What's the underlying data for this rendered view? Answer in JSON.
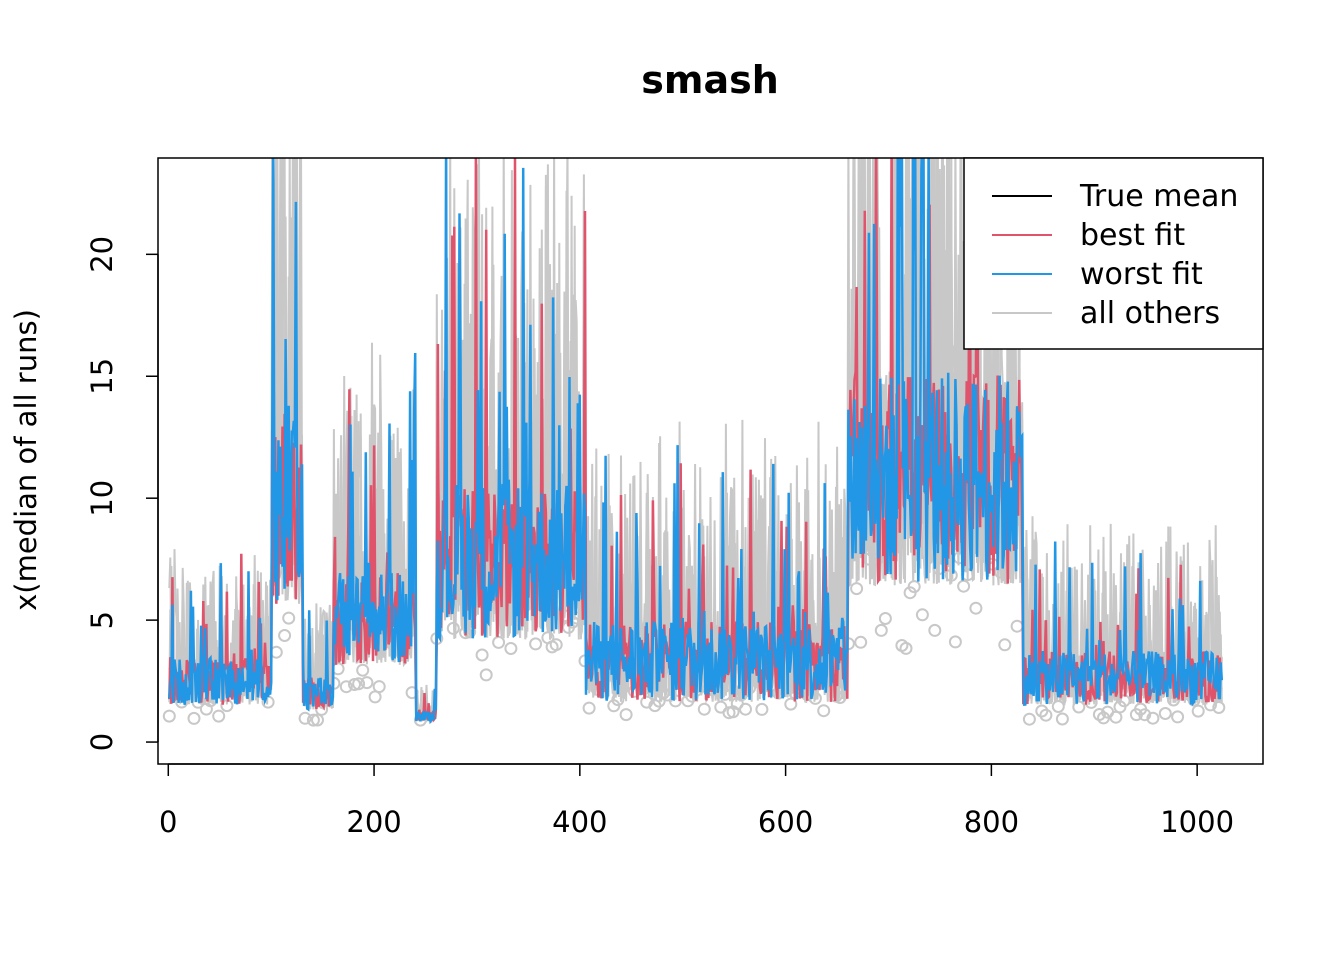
{
  "chart_data": {
    "type": "line",
    "title": "smash",
    "xlabel": "",
    "ylabel": "x(median of all runs)",
    "xlim": [
      -10,
      1064
    ],
    "ylim": [
      -0.9,
      23.95
    ],
    "xticks": [
      0,
      200,
      400,
      600,
      800,
      1000
    ],
    "xtick_labels": [
      "0",
      "200",
      "400",
      "600",
      "800",
      "1000"
    ],
    "yticks": [
      0,
      5,
      10,
      15,
      20
    ],
    "ytick_labels": [
      "0",
      "5",
      "10",
      "15",
      "20"
    ],
    "grid": false,
    "legend_position": "top-right",
    "n_points": 1024,
    "colors": {
      "true_mean": "#000000",
      "best_fit": "#df536b",
      "worst_fit": "#2297e6",
      "all_others": "#c8c8c8"
    },
    "segments": [
      {
        "start": 0,
        "end": 100,
        "level": 2.2,
        "spread": 3.5
      },
      {
        "start": 100,
        "end": 130,
        "level": 8.5,
        "spread": 15
      },
      {
        "start": 130,
        "end": 160,
        "level": 1.8,
        "spread": 2.5
      },
      {
        "start": 160,
        "end": 240,
        "level": 4.5,
        "spread": 7
      },
      {
        "start": 240,
        "end": 260,
        "level": 1.0,
        "spread": 0.8
      },
      {
        "start": 260,
        "end": 405,
        "level": 6.5,
        "spread": 12
      },
      {
        "start": 405,
        "end": 660,
        "level": 2.8,
        "spread": 6
      },
      {
        "start": 660,
        "end": 830,
        "level": 9.5,
        "spread": 16
      },
      {
        "start": 830,
        "end": 1024,
        "level": 2.3,
        "spread": 4
      }
    ],
    "series": [
      {
        "name": "True mean",
        "color": "#000000"
      },
      {
        "name": "best fit",
        "color": "#df536b"
      },
      {
        "name": "worst fit",
        "color": "#2297e6"
      },
      {
        "name": "all others",
        "color": "#c8c8c8"
      }
    ]
  }
}
